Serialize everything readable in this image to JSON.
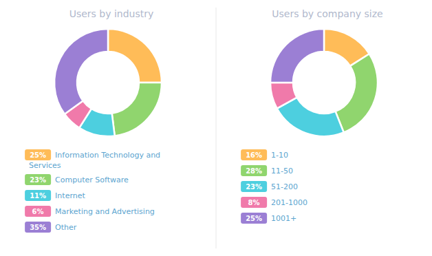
{
  "chart_data": [
    {
      "type": "pie",
      "title": "Users by industry",
      "categories": [
        "Information Technology and\nServices",
        "Computer Software",
        "Internet",
        "Marketing and Advertising",
        "Other"
      ],
      "values": [
        25,
        23,
        11,
        6,
        35
      ],
      "value_labels": [
        "25%",
        "23%",
        "11%",
        "6%",
        "35%"
      ],
      "colors": [
        "#FFBC58",
        "#90D56E",
        "#4DCFDF",
        "#F07AAA",
        "#9B7FD4"
      ]
    },
    {
      "type": "pie",
      "title": "Users by company size",
      "categories": [
        "1-10",
        "11-50",
        "51-200",
        "201-1000",
        "1001+"
      ],
      "values": [
        16,
        28,
        23,
        8,
        25
      ],
      "value_labels": [
        "16%",
        "28%",
        "23%",
        "8%",
        "25%"
      ],
      "colors": [
        "#FFBC58",
        "#90D56E",
        "#4DCFDF",
        "#F07AAA",
        "#9B7FD4"
      ]
    }
  ]
}
